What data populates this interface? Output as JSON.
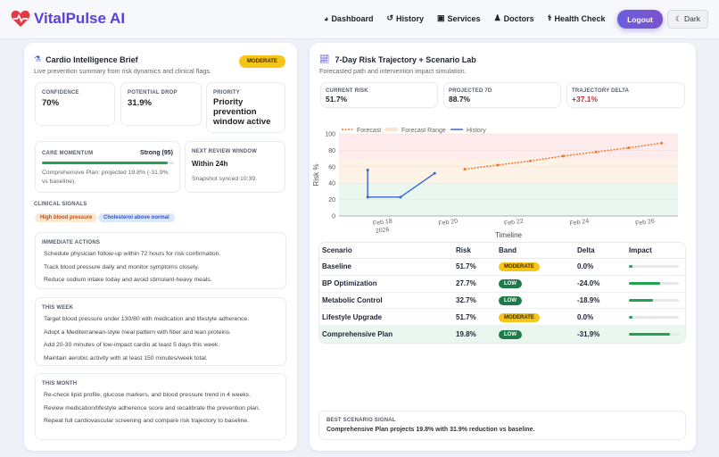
{
  "header": {
    "brand": "VitalPulse AI",
    "nav": [
      {
        "label": "Dashboard",
        "icon": "dashboard-icon"
      },
      {
        "label": "History",
        "icon": "history-icon"
      },
      {
        "label": "Services",
        "icon": "briefcase-icon"
      },
      {
        "label": "Doctors",
        "icon": "doctor-icon"
      },
      {
        "label": "Health Check",
        "icon": "stethoscope-icon"
      }
    ],
    "logout": "Logout",
    "dark": "Dark"
  },
  "brief": {
    "title": "Cardio Intelligence Brief",
    "subtitle": "Live prevention summary from risk dynamics and clinical flags.",
    "badge": "MODERATE",
    "confidence_label": "CONFIDENCE",
    "confidence": "70%",
    "drop_label": "POTENTIAL DROP",
    "drop": "31.9%",
    "priority_label": "PRIORITY",
    "priority": "Priority prevention window active",
    "momentum_label": "CARE MOMENTUM",
    "momentum_value": "Strong (95)",
    "momentum_pct": 95,
    "momentum_text": "Comprehensive Plan: projected 19.8% (-31.9% vs baseline).",
    "review_label": "NEXT REVIEW WINDOW",
    "review_value": "Within 24h",
    "review_sub": "Snapshot synced 10:39.",
    "signals_label": "CLINICAL SIGNALS",
    "signals": [
      "High blood pressure",
      "Cholesterol above normal"
    ],
    "sections": [
      {
        "title": "IMMEDIATE ACTIONS",
        "items": [
          "Schedule physician follow-up within 72 hours for risk confirmation.",
          "Track blood pressure daily and monitor symptoms closely.",
          "Reduce sodium intake today and avoid stimulant-heavy meals."
        ]
      },
      {
        "title": "THIS WEEK",
        "items": [
          "Target blood pressure under 130/80 with medication and lifestyle adherence.",
          "Adopt a Mediterranean-style meal pattern with fiber and lean proteins.",
          "Add 20-30 minutes of low-impact cardio at least 5 days this week.",
          "Maintain aerobic activity with at least 150 minutes/week total."
        ]
      },
      {
        "title": "THIS MONTH",
        "items": [
          "Re-check lipid profile, glucose markers, and blood pressure trend in 4 weeks.",
          "Review medication/lifestyle adherence score and recalibrate the prevention plan.",
          "Repeat full cardiovascular screening and compare risk trajectory to baseline."
        ]
      }
    ]
  },
  "traj": {
    "title": "7-Day Risk Trajectory + Scenario Lab",
    "subtitle": "Forecasted path and intervention impact simulation.",
    "stats": [
      {
        "label": "CURRENT RISK",
        "value": "51.7%"
      },
      {
        "label": "PROJECTED 7D",
        "value": "88.7%"
      },
      {
        "label": "TRAJECTORY DELTA",
        "value": "+37.1%"
      }
    ],
    "table_headers": [
      "Scenario",
      "Risk",
      "Band",
      "Delta",
      "Impact"
    ],
    "rows": [
      {
        "scenario": "Baseline",
        "risk": "51.7%",
        "band": "MODERATE",
        "delta": "0.0%",
        "impact": 5
      },
      {
        "scenario": "BP Optimization",
        "risk": "27.7%",
        "band": "LOW",
        "delta": "-24.0%",
        "impact": 62
      },
      {
        "scenario": "Metabolic Control",
        "risk": "32.7%",
        "band": "LOW",
        "delta": "-18.9%",
        "impact": 48
      },
      {
        "scenario": "Lifestyle Upgrade",
        "risk": "51.7%",
        "band": "MODERATE",
        "delta": "0.0%",
        "impact": 5
      },
      {
        "scenario": "Comprehensive Plan",
        "risk": "19.8%",
        "band": "LOW",
        "delta": "-31.9%",
        "impact": 82
      }
    ],
    "best_label": "BEST SCENARIO SIGNAL",
    "best_text": "Comprehensive Plan projects 19.8% with 31.9% reduction vs baseline."
  },
  "chart_data": {
    "type": "line",
    "xlabel": "Timeline",
    "ylabel": "Risk %",
    "ylim": [
      0,
      100
    ],
    "yticks": [
      0,
      20,
      40,
      60,
      80,
      100
    ],
    "xticks": [
      "Feb 18",
      "Feb 20",
      "Feb 22",
      "Feb 24",
      "Feb 26"
    ],
    "xtick_year": "2026",
    "xlim": [
      "2026-02-16T16:00",
      "2026-02-27T00:00"
    ],
    "legend": [
      "Forecast",
      "Forecast Range",
      "History"
    ],
    "legend_position": "top-left",
    "bands": [
      {
        "from": 0,
        "to": 40,
        "color": "#e9f7ee"
      },
      {
        "from": 40,
        "to": 70,
        "color": "#fdf2e6"
      },
      {
        "from": 70,
        "to": 100,
        "color": "#fdeceb"
      }
    ],
    "series": [
      {
        "name": "History",
        "color": "#3a62d6",
        "x": [
          "2026-02-17T13:00",
          "2026-02-17T13:00",
          "2026-02-18T13:00",
          "2026-02-19T14:00"
        ],
        "y": [
          56,
          23,
          23,
          52
        ]
      },
      {
        "name": "Forecast",
        "color": "#f07a2a",
        "x": [
          "2026-02-20T12:00",
          "2026-02-21T12:00",
          "2026-02-22T12:00",
          "2026-02-23T12:00",
          "2026-02-24T12:00",
          "2026-02-25T12:00",
          "2026-02-26T12:00"
        ],
        "y": [
          57,
          62,
          67,
          73,
          78,
          83,
          88.7
        ]
      }
    ]
  },
  "colors": {
    "accent": "#5b3fd6",
    "moderate": "#f5c518",
    "low": "#1f7a4a",
    "negative": "#c8283b"
  }
}
